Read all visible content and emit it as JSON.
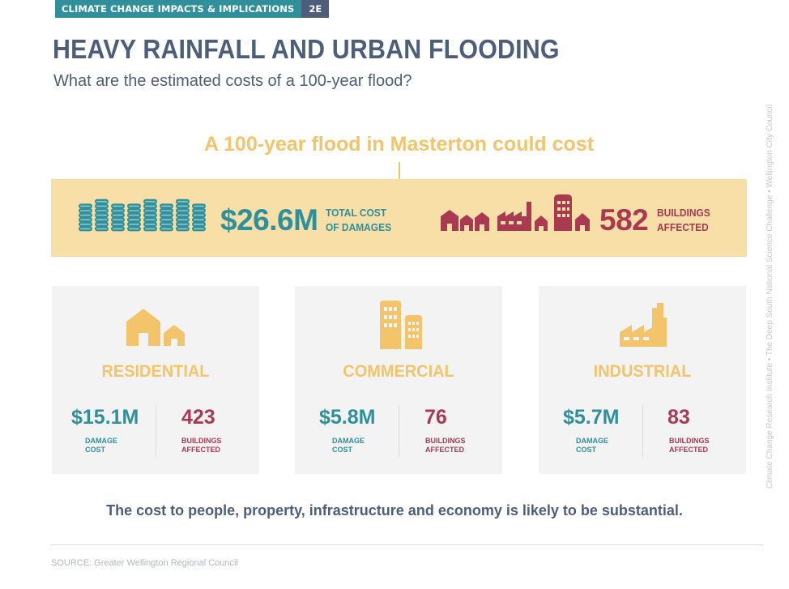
{
  "header": {
    "section_label": "CLIMATE CHANGE IMPACTS & IMPLICATIONS",
    "section_code": "2E",
    "title": "HEAVY RAINFALL AND URBAN FLOODING",
    "subtitle": "What are the estimated costs of a 100-year flood?"
  },
  "side_credit": "Climate Change Research Institute  •  The Deep South National Science Challenge  •  Wellington City Council",
  "summary": {
    "headline": "A 100-year flood in Masterton could cost",
    "total_cost": "$26.6M",
    "total_cost_label_1": "TOTAL COST",
    "total_cost_label_2": "OF DAMAGES",
    "buildings": "582",
    "buildings_label_1": "BUILDINGS",
    "buildings_label_2": "AFFECTED"
  },
  "categories": [
    {
      "name": "RESIDENTIAL",
      "cost": "$15.1M",
      "buildings": "423",
      "icon": "houses-icon"
    },
    {
      "name": "COMMERCIAL",
      "cost": "$5.8M",
      "buildings": "76",
      "icon": "office-buildings-icon"
    },
    {
      "name": "INDUSTRIAL",
      "cost": "$5.7M",
      "buildings": "83",
      "icon": "factory-icon"
    }
  ],
  "labels": {
    "damage_1": "DAMAGE",
    "damage_2": "COST",
    "buildings_1": "BUILDINGS",
    "buildings_2": "AFFECTED"
  },
  "conclusion": "The cost to people, property, infrastructure and economy is likely to be substantial.",
  "source": "SOURCE: Greater Wellington Regional Council",
  "colors": {
    "teal": "#2f8f9a",
    "navy": "#4d5e7a",
    "gold": "#f3c46a",
    "crimson": "#a93a52",
    "band": "#f8dfa8",
    "card": "#f3f3f3"
  }
}
